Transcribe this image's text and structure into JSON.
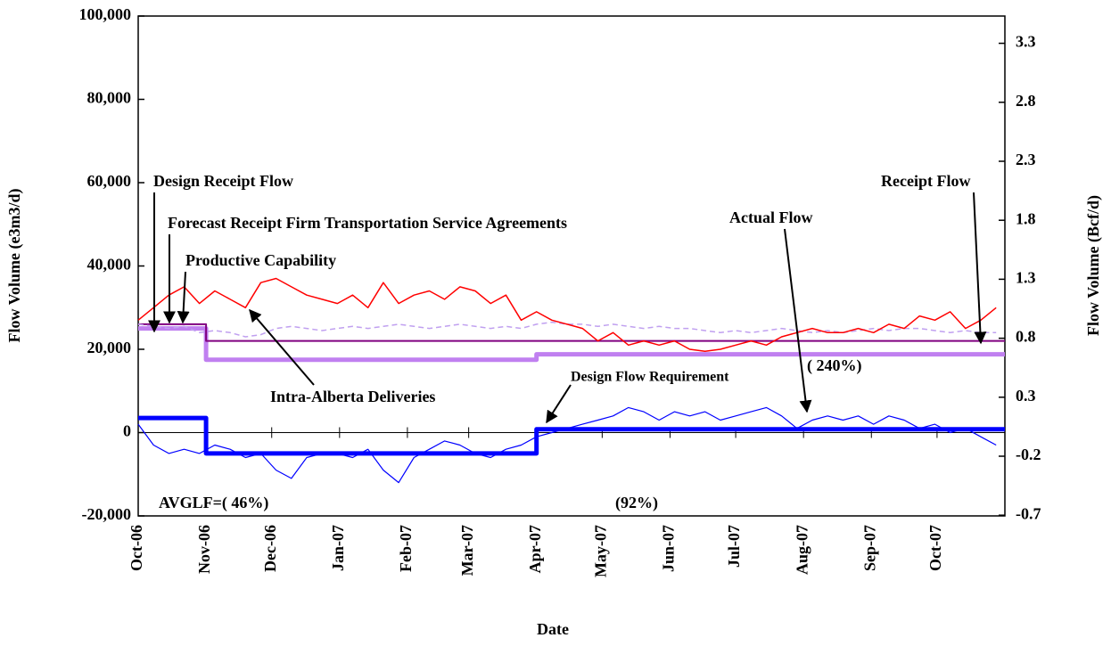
{
  "chart_data": {
    "type": "line",
    "xlabel": "Date",
    "ylabel": "Flow Volume  (e3m3/d)",
    "y2label": "Flow Volume  (Bcf/d)",
    "xlim": [
      0,
      396
    ],
    "xticks": [
      {
        "value": 0,
        "label": "Oct-06"
      },
      {
        "value": 31,
        "label": "Nov-06"
      },
      {
        "value": 61,
        "label": "Dec-06"
      },
      {
        "value": 92,
        "label": "Jan-07"
      },
      {
        "value": 123,
        "label": "Feb-07"
      },
      {
        "value": 151,
        "label": "Mar-07"
      },
      {
        "value": 182,
        "label": "Apr-07"
      },
      {
        "value": 212,
        "label": "May-07"
      },
      {
        "value": 243,
        "label": "Jun-07"
      },
      {
        "value": 273,
        "label": "Jul-07"
      },
      {
        "value": 304,
        "label": "Aug-07"
      },
      {
        "value": 335,
        "label": "Sep-07"
      },
      {
        "value": 365,
        "label": "Oct-07"
      }
    ],
    "ylim": [
      -20000,
      100000
    ],
    "yticks": [
      {
        "value": -20000,
        "label": "-20,000"
      },
      0,
      {
        "value": 20000,
        "label": "20,000"
      },
      {
        "value": 40000,
        "label": "40,000"
      },
      {
        "value": 60000,
        "label": "60,000"
      },
      {
        "value": 80000,
        "label": "80,000"
      },
      {
        "value": 100000,
        "label": "100,000"
      }
    ],
    "y2lim": [
      -0.706,
      3.531
    ],
    "y2ticks": [
      -0.7,
      -0.2,
      0.3,
      0.8,
      1.3,
      1.8,
      2.3,
      2.8,
      3.3
    ],
    "series": [
      {
        "color": "#c080f0",
        "width": 5,
        "x": [
          0,
          31,
          31,
          182,
          182,
          396
        ],
        "values": [
          25000,
          25000,
          17500,
          17500,
          18800,
          18800
        ]
      },
      {
        "color": "#800080",
        "width": 2,
        "x": [
          0,
          31,
          31,
          396
        ],
        "values": [
          26000,
          26000,
          22000,
          22000
        ]
      },
      {
        "color": "#c0a0f0",
        "width": 1.5,
        "dashed": true,
        "x": [
          0,
          7,
          14,
          21,
          28,
          35,
          42,
          49,
          56,
          63,
          70,
          77,
          84,
          91,
          98,
          105,
          112,
          119,
          126,
          133,
          140,
          147,
          154,
          161,
          168,
          175,
          182,
          189,
          196,
          203,
          210,
          217,
          224,
          231,
          238,
          245,
          252,
          259,
          266,
          273,
          280,
          287,
          294,
          301,
          308,
          315,
          322,
          329,
          336,
          343,
          350,
          357,
          364,
          371,
          378,
          385,
          392
        ],
        "values": [
          26000,
          25500,
          25000,
          25500,
          24000,
          24500,
          24000,
          23000,
          23500,
          25000,
          25500,
          25000,
          24500,
          25000,
          25500,
          25000,
          25500,
          26000,
          25500,
          25000,
          25500,
          26000,
          25500,
          25000,
          25500,
          25000,
          26000,
          26500,
          26000,
          26000,
          25500,
          26000,
          25500,
          25000,
          25500,
          25000,
          25000,
          24500,
          24000,
          24500,
          24000,
          24500,
          25000,
          24500,
          24000,
          24500,
          24000,
          24500,
          25000,
          24500,
          25000,
          25000,
          24500,
          24000,
          24500,
          24000,
          24000
        ]
      },
      {
        "color": "#ff0000",
        "width": 1.5,
        "x": [
          0,
          7,
          14,
          21,
          28,
          35,
          42,
          49,
          56,
          63,
          70,
          77,
          84,
          91,
          98,
          105,
          112,
          119,
          126,
          133,
          140,
          147,
          154,
          161,
          168,
          175,
          182,
          189,
          196,
          203,
          210,
          217,
          224,
          231,
          238,
          245,
          252,
          259,
          266,
          273,
          280,
          287,
          294,
          301,
          308,
          315,
          322,
          329,
          336,
          343,
          350,
          357,
          364,
          371,
          378,
          385,
          392
        ],
        "values": [
          27000,
          30000,
          33000,
          35000,
          31000,
          34000,
          32000,
          30000,
          36000,
          37000,
          35000,
          33000,
          32000,
          31000,
          33000,
          30000,
          36000,
          31000,
          33000,
          34000,
          32000,
          35000,
          34000,
          31000,
          33000,
          27000,
          29000,
          27000,
          26000,
          25000,
          22000,
          24000,
          21000,
          22000,
          21000,
          22000,
          20000,
          19500,
          20000,
          21000,
          22000,
          21000,
          23000,
          24000,
          25000,
          24000,
          24000,
          25000,
          24000,
          26000,
          25000,
          28000,
          27000,
          29000,
          25000,
          27000,
          30000
        ]
      },
      {
        "color": "#0000ff",
        "width": 1.2,
        "x": [
          0,
          7,
          14,
          21,
          28,
          35,
          42,
          49,
          56,
          63,
          70,
          77,
          84,
          91,
          98,
          105,
          112,
          119,
          126,
          133,
          140,
          147,
          154,
          161,
          168,
          175,
          182,
          189,
          196,
          203,
          210,
          217,
          224,
          231,
          238,
          245,
          252,
          259,
          266,
          273,
          280,
          287,
          294,
          301,
          308,
          315,
          322,
          329,
          336,
          343,
          350,
          357,
          364,
          371,
          378,
          385,
          392
        ],
        "values": [
          2000,
          -3000,
          -5000,
          -4000,
          -5000,
          -3000,
          -4000,
          -6000,
          -5000,
          -9000,
          -11000,
          -6000,
          -5000,
          -5000,
          -6000,
          -4000,
          -9000,
          -12000,
          -6000,
          -4000,
          -2000,
          -3000,
          -5000,
          -6000,
          -4000,
          -3000,
          -1000,
          0,
          1000,
          2000,
          3000,
          4000,
          6000,
          5000,
          3000,
          5000,
          4000,
          5000,
          3000,
          4000,
          5000,
          6000,
          4000,
          1000,
          3000,
          4000,
          3000,
          4000,
          2000,
          4000,
          3000,
          1000,
          2000,
          0,
          1000,
          -1000,
          -3000
        ]
      },
      {
        "color": "#0000ff",
        "width": 5,
        "x": [
          0,
          31,
          31,
          182,
          182,
          396
        ],
        "values": [
          3500,
          3500,
          -5000,
          -5000,
          800,
          800
        ]
      }
    ],
    "annotations": [
      "Design Receipt Flow",
      "Forecast Receipt Firm Transportation Service Agreements",
      "Productive Capability",
      "Intra-Alberta Deliveries",
      "Actual Flow",
      "Receipt Flow",
      "Design Flow Requirement",
      "( 240%)",
      "AVGLF=( 46%)",
      "(92%)"
    ]
  }
}
